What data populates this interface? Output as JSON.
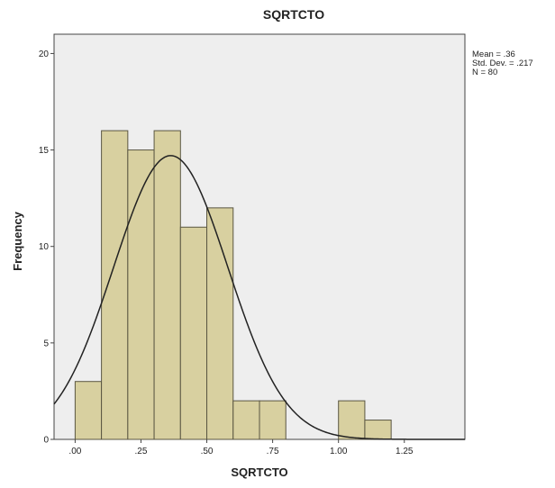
{
  "chart_data": {
    "type": "bar",
    "title": "SQRTCTO",
    "xlabel": "SQRTCTO",
    "ylabel": "Frequency",
    "bin_width": 0.1,
    "bins": [
      {
        "start": 0.0,
        "end": 0.1,
        "count": 3
      },
      {
        "start": 0.1,
        "end": 0.2,
        "count": 16
      },
      {
        "start": 0.2,
        "end": 0.3,
        "count": 15
      },
      {
        "start": 0.3,
        "end": 0.4,
        "count": 16
      },
      {
        "start": 0.4,
        "end": 0.5,
        "count": 11
      },
      {
        "start": 0.5,
        "end": 0.6,
        "count": 12
      },
      {
        "start": 0.6,
        "end": 0.7,
        "count": 2
      },
      {
        "start": 0.7,
        "end": 0.8,
        "count": 2
      },
      {
        "start": 1.0,
        "end": 1.1,
        "count": 2
      },
      {
        "start": 1.1,
        "end": 1.2,
        "count": 1
      }
    ],
    "xlim": [
      -0.08,
      1.48
    ],
    "ylim": [
      0,
      21
    ],
    "x_ticks": [
      {
        "value": 0.0,
        "label": ".00"
      },
      {
        "value": 0.25,
        "label": ".25"
      },
      {
        "value": 0.5,
        "label": ".50"
      },
      {
        "value": 0.75,
        "label": ".75"
      },
      {
        "value": 1.0,
        "label": "1.00"
      },
      {
        "value": 1.25,
        "label": "1.25"
      }
    ],
    "y_ticks": [
      {
        "value": 0,
        "label": "0"
      },
      {
        "value": 5,
        "label": "5"
      },
      {
        "value": 10,
        "label": "10"
      },
      {
        "value": 15,
        "label": "15"
      },
      {
        "value": 20,
        "label": "20"
      }
    ],
    "normal_curve": {
      "mean": 0.363,
      "sd": 0.217,
      "n": 80
    },
    "stats_lines": [
      "Mean = .36",
      "Std. Dev. = .217",
      "N = 80"
    ],
    "grid": false,
    "colors": {
      "plot_background": "#eeeeee",
      "bar_fill": "#d8d0a0",
      "bar_stroke": "#5a5642",
      "curve": "#222222"
    }
  }
}
